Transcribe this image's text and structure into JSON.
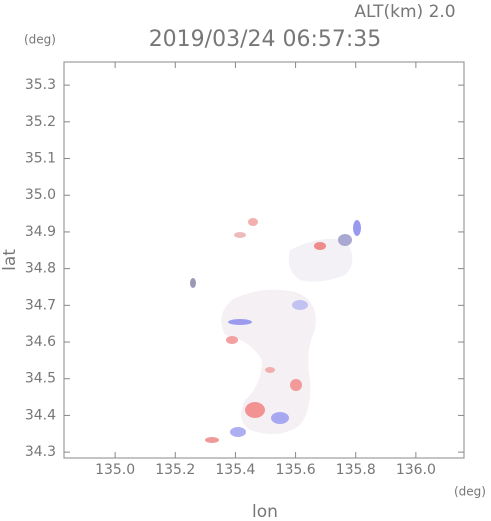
{
  "chart_data": {
    "type": "map",
    "title": "2019/03/24 06:57:35",
    "annotation": "ALT(km) 2.0",
    "x_label": "lon",
    "x_unit": "(deg)",
    "y_label": "lat",
    "y_unit": "(deg)",
    "xlim": [
      134.83,
      136.16
    ],
    "ylim": [
      34.284,
      35.363
    ],
    "xticks": [
      {
        "value": 135,
        "label": "135.0"
      },
      135.2,
      135.4,
      135.6,
      135.8,
      {
        "value": 136,
        "label": "136.0"
      }
    ],
    "yticks": [
      34.3,
      34.4,
      34.5,
      34.6,
      34.7,
      34.8,
      34.9,
      {
        "value": 35,
        "label": "35.0"
      },
      35.1,
      35.2,
      35.3
    ],
    "color": "#888888"
  }
}
